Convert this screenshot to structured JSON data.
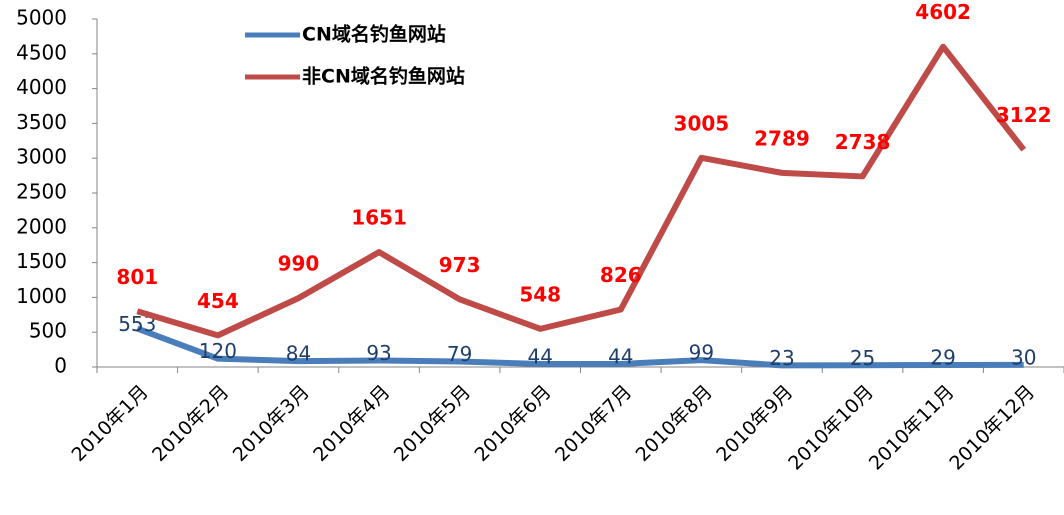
{
  "chart_data": {
    "type": "line",
    "categories": [
      "2010年1月",
      "2010年2月",
      "2010年3月",
      "2010年4月",
      "2010年5月",
      "2010年6月",
      "2010年7月",
      "2010年8月",
      "2010年9月",
      "2010年10月",
      "2010年11月",
      "2010年12月"
    ],
    "series": [
      {
        "name": "CN域名钓鱼网站",
        "color": "#4a7ebb",
        "label_color": "#1f3f6b",
        "values": [
          553,
          120,
          84,
          93,
          79,
          44,
          44,
          99,
          23,
          25,
          29,
          30
        ]
      },
      {
        "name": "非CN域名钓鱼网站",
        "color": "#be4b48",
        "label_color": "#ff0000",
        "values": [
          801,
          454,
          990,
          1651,
          973,
          548,
          826,
          3005,
          2789,
          2738,
          4602,
          3122
        ]
      }
    ],
    "ylim": [
      0,
      5000
    ],
    "yticks": [
      0,
      500,
      1000,
      1500,
      2000,
      2500,
      3000,
      3500,
      4000,
      4500,
      5000
    ],
    "grid": false,
    "legend": "top"
  }
}
